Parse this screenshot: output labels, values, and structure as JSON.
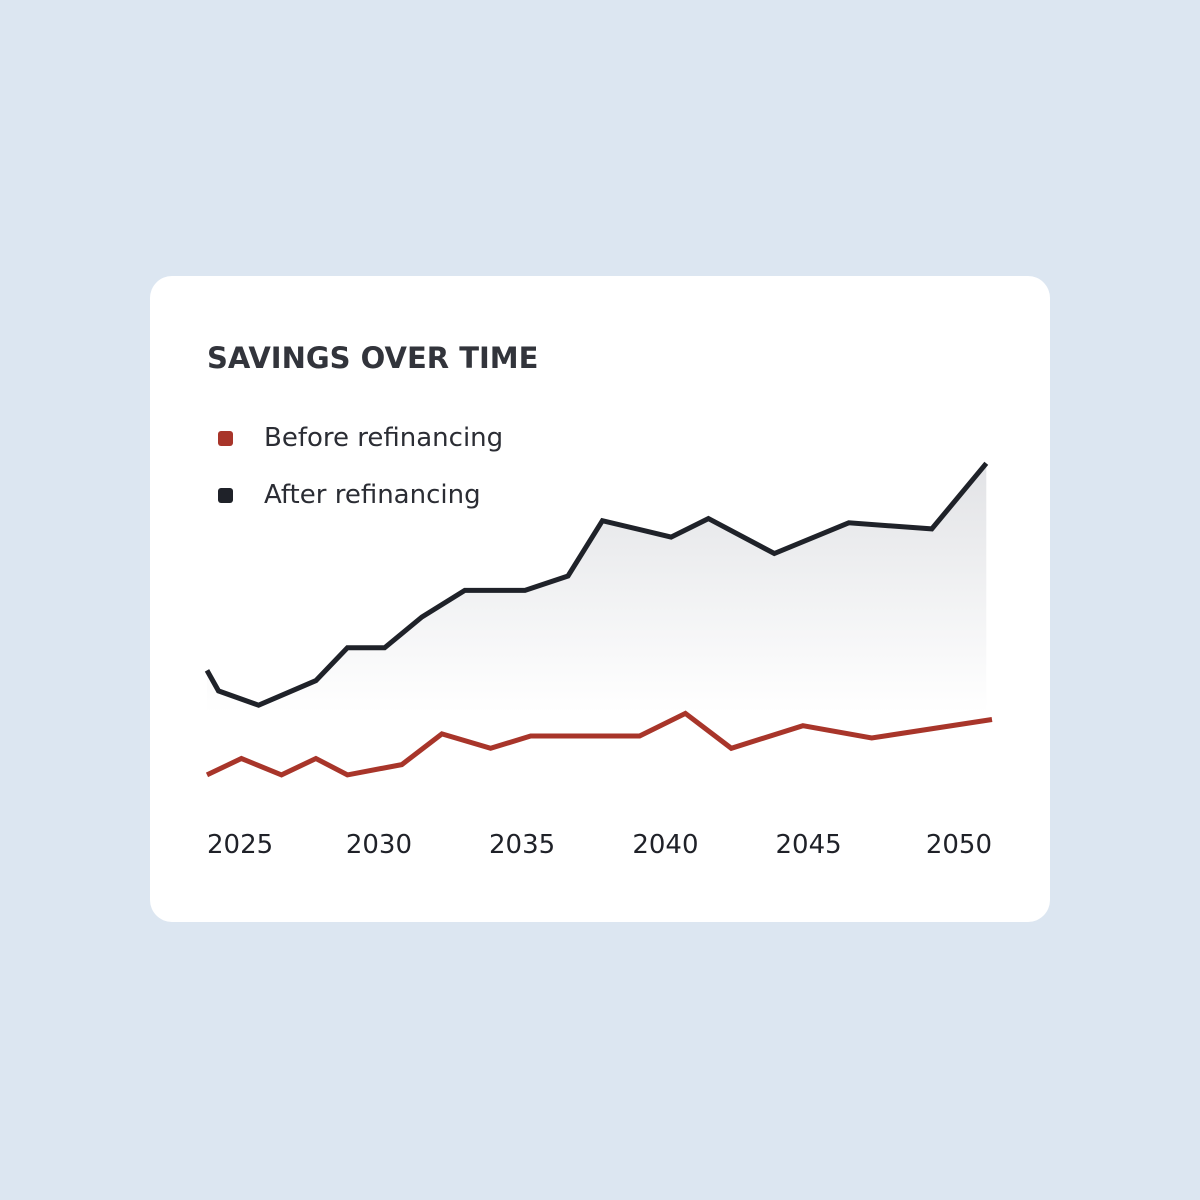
{
  "colors": {
    "page_background": "#dce6f1",
    "card_background": "#ffffff",
    "before": "#a8352a",
    "after": "#1f2229",
    "area_top": "#e2e3e6",
    "area_bottom": "#ffffff"
  },
  "chart_data": {
    "type": "line",
    "title": "SAVINGS OVER TIME",
    "xlabel": "",
    "ylabel": "",
    "xlim": [
      2024,
      2051.4
    ],
    "ylim": [
      0,
      100
    ],
    "x_ticks": [
      2025,
      2030,
      2035,
      2040,
      2045,
      2050
    ],
    "x_tick_labels": [
      "2025",
      "2030",
      "2035",
      "2040",
      "2045",
      "2050"
    ],
    "grid": false,
    "legend_position": "top-left",
    "series": [
      {
        "name": "Before refinancing",
        "color": "#a8352a",
        "fill": false,
        "points": [
          [
            2024.0,
            11
          ],
          [
            2025.2,
            15
          ],
          [
            2026.6,
            11
          ],
          [
            2027.8,
            15
          ],
          [
            2028.9,
            11
          ],
          [
            2030.8,
            13.5
          ],
          [
            2032.2,
            21
          ],
          [
            2033.9,
            17.5
          ],
          [
            2035.3,
            20.5
          ],
          [
            2037.5,
            20.5
          ],
          [
            2039.1,
            20.5
          ],
          [
            2040.7,
            26
          ],
          [
            2042.3,
            17.5
          ],
          [
            2044.8,
            23
          ],
          [
            2047.2,
            20
          ],
          [
            2051.4,
            24.5
          ]
        ]
      },
      {
        "name": "After refinancing",
        "color": "#1f2229",
        "fill": true,
        "points": [
          [
            2024.0,
            36.5
          ],
          [
            2024.4,
            31.5
          ],
          [
            2025.8,
            28
          ],
          [
            2027.8,
            34
          ],
          [
            2028.9,
            42
          ],
          [
            2030.2,
            42
          ],
          [
            2031.5,
            49.5
          ],
          [
            2033.0,
            56
          ],
          [
            2035.1,
            56
          ],
          [
            2036.6,
            59.5
          ],
          [
            2037.8,
            73
          ],
          [
            2040.2,
            69
          ],
          [
            2041.5,
            73.5
          ],
          [
            2043.8,
            65
          ],
          [
            2046.4,
            72.5
          ],
          [
            2049.3,
            71
          ],
          [
            2051.2,
            87
          ]
        ]
      }
    ]
  }
}
